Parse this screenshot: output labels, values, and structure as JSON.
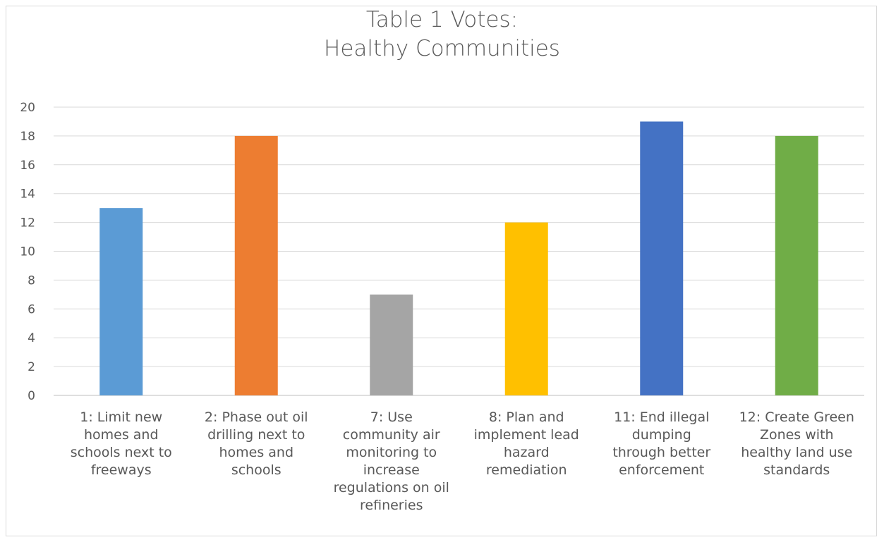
{
  "chart_data": {
    "type": "bar",
    "title_lines": [
      "Table 1 Votes:",
      "Healthy Communities"
    ],
    "categories": [
      [
        "1: Limit new",
        "homes and",
        "schools next to",
        "freeways"
      ],
      [
        "2: Phase out oil",
        "drilling next  to",
        "homes and",
        "schools"
      ],
      [
        "7: Use",
        "community air",
        "monitoring to",
        "increase",
        "regulations on oil",
        "refineries"
      ],
      [
        "8: Plan and",
        "implement lead",
        "hazard",
        "remediation"
      ],
      [
        "11: End illegal",
        "dumping",
        "through better",
        "enforcement"
      ],
      [
        "12: Create Green",
        "Zones with",
        "healthy land use",
        "standards"
      ]
    ],
    "values": [
      13,
      18,
      7,
      12,
      19,
      18
    ],
    "colors": [
      "#5b9bd5",
      "#ed7d31",
      "#a5a5a5",
      "#ffc000",
      "#4472c4",
      "#70ad47"
    ],
    "ylim": [
      0,
      20
    ],
    "yticks": [
      0,
      2,
      4,
      6,
      8,
      10,
      12,
      14,
      16,
      18,
      20
    ],
    "grid": true,
    "legend": "none",
    "xlabel": "",
    "ylabel": ""
  }
}
